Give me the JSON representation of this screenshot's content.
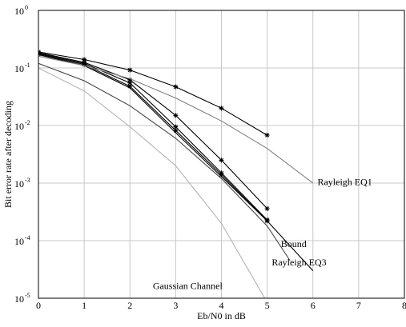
{
  "chart_data": {
    "type": "line",
    "title": "",
    "xlabel": "Eb/N0 in dB",
    "ylabel": "Bit error rate after decoding",
    "xlim": [
      0,
      8
    ],
    "ylim": [
      1e-05,
      1
    ],
    "yscale": "log",
    "grid": true,
    "x_ticks": [
      "0",
      "1",
      "2",
      "3",
      "4",
      "5",
      "6",
      "7",
      "8"
    ],
    "y_ticks": [
      {
        "base": "10",
        "exp": "-5",
        "value": 1e-05
      },
      {
        "base": "10",
        "exp": "-4",
        "value": 0.0001
      },
      {
        "base": "10",
        "exp": "-3",
        "value": 0.001
      },
      {
        "base": "10",
        "exp": "-2",
        "value": 0.01
      },
      {
        "base": "10",
        "exp": "-1",
        "value": 0.1
      },
      {
        "base": "10",
        "exp": "0",
        "value": 1
      }
    ],
    "series": [
      {
        "color": "#000000",
        "marker": "star",
        "x": [
          0,
          1,
          2,
          3,
          4,
          5
        ],
        "y": [
          0.19,
          0.14,
          0.092,
          0.047,
          0.02,
          0.0068
        ]
      },
      {
        "color": "#000000",
        "marker": "star",
        "x": [
          0,
          1,
          2,
          3,
          4,
          5
        ],
        "y": [
          0.185,
          0.125,
          0.062,
          0.015,
          0.0025,
          0.00036
        ]
      },
      {
        "color": "#000000",
        "marker": "star",
        "x": [
          0,
          1,
          2,
          3,
          4,
          5
        ],
        "y": [
          0.18,
          0.12,
          0.055,
          0.0095,
          0.0015,
          0.00023
        ]
      },
      {
        "color": "#000000",
        "marker": "star",
        "x": [
          0,
          1,
          2,
          3,
          4,
          5
        ],
        "y": [
          0.175,
          0.115,
          0.048,
          0.0082,
          0.0014,
          0.00022
        ]
      },
      {
        "color": "#000000",
        "marker": "none",
        "x": [
          0,
          1,
          2,
          3,
          4,
          5,
          6
        ],
        "y": [
          0.17,
          0.11,
          0.045,
          0.0075,
          0.0013,
          0.00022,
          3e-05
        ]
      },
      {
        "color": "#444444",
        "marker": "none",
        "x": [
          0,
          1,
          2,
          3,
          4,
          5,
          5.5
        ],
        "y": [
          0.12,
          0.06,
          0.022,
          0.006,
          0.0012,
          0.00018,
          4.5e-05
        ]
      },
      {
        "color": "#808080",
        "marker": "none",
        "x": [
          0,
          1,
          2,
          3,
          4,
          5,
          6
        ],
        "y": [
          0.16,
          0.11,
          0.065,
          0.03,
          0.012,
          0.004,
          0.001
        ]
      },
      {
        "color": "#b4b4b4",
        "marker": "none",
        "x": [
          0,
          1,
          2,
          3,
          4,
          5
        ],
        "y": [
          0.1,
          0.04,
          0.0095,
          0.002,
          0.0002,
          8.5e-06
        ]
      }
    ],
    "annotations": [
      {
        "text": "Rayleigh EQ1",
        "x": 6.1,
        "y": 0.00105
      },
      {
        "text": "Bound",
        "x": 5.3,
        "y": 8.8e-05
      },
      {
        "text": "Rayleigh EQ3",
        "x": 5.1,
        "y": 4.2e-05
      },
      {
        "text": "Gaussian Channel",
        "x": 2.5,
        "y": 1.65e-05
      }
    ]
  }
}
